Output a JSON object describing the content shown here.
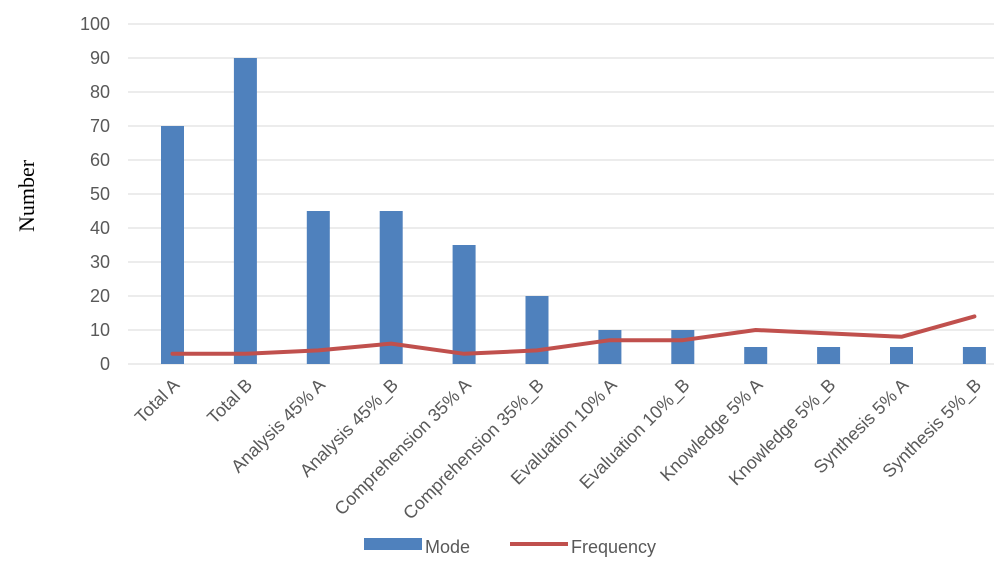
{
  "chart_data": {
    "type": "bar",
    "title": "",
    "xlabel": "",
    "ylabel": "Number",
    "ylim": [
      0,
      100
    ],
    "yticks": [
      0,
      10,
      20,
      30,
      40,
      50,
      60,
      70,
      80,
      90,
      100
    ],
    "grid": true,
    "legend_position": "bottom",
    "categories": [
      "Total A",
      "Total B",
      "Analysis 45% A",
      "Analysis 45%_B",
      "Comprehension 35% A",
      "Comprehension 35%_B",
      "Evaluation 10% A",
      "Evaluation 10%_B",
      "Knowledge 5% A",
      "Knowledge 5%_B",
      "Synthesis 5% A",
      "Synthesis 5%_B"
    ],
    "series": [
      {
        "name": "Mode",
        "type": "bar",
        "color": "#4f81bd",
        "values": [
          70,
          90,
          45,
          45,
          35,
          20,
          10,
          10,
          5,
          5,
          5,
          5
        ]
      },
      {
        "name": "Frequency",
        "type": "line",
        "color": "#c0504d",
        "values": [
          3,
          3,
          4,
          6,
          3,
          4,
          7,
          7,
          10,
          9,
          8,
          14
        ]
      }
    ]
  }
}
